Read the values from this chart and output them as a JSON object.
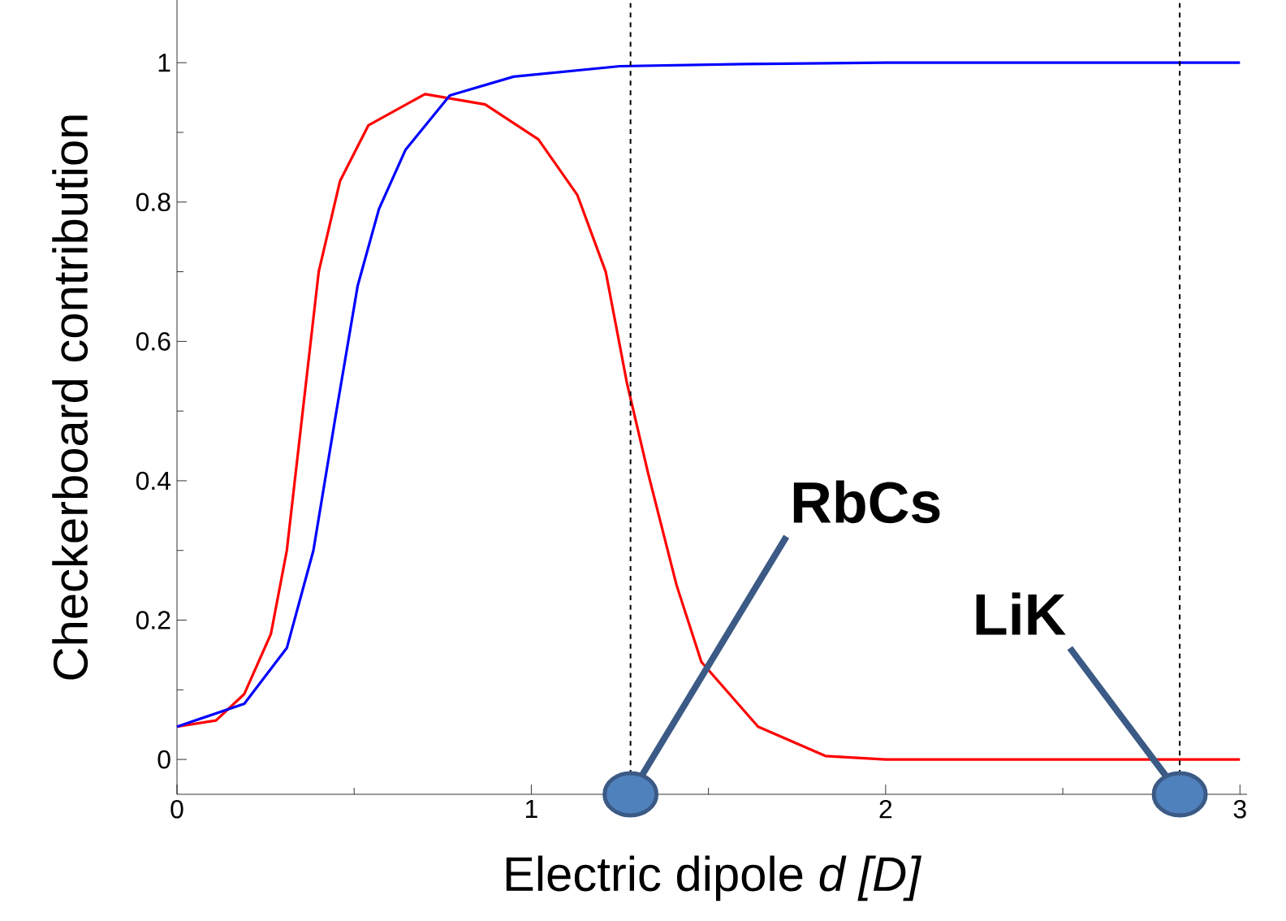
{
  "chart_data": {
    "type": "line",
    "xlabel": "Electric dipole *d [D]*",
    "ylabel": "Checkerboard contribution",
    "xlim": [
      0,
      3.02
    ],
    "ylim": [
      -0.05,
      1.09
    ],
    "xticks": [
      0,
      1,
      2,
      3
    ],
    "yticks": [
      0,
      0.2,
      0.4,
      0.6,
      0.8,
      1
    ],
    "series": [
      {
        "color": "#ff0000",
        "x": [
          0,
          0.11,
          0.19,
          0.265,
          0.31,
          0.355,
          0.4,
          0.46,
          0.54,
          0.7,
          0.87,
          1.02,
          1.13,
          1.21,
          1.27,
          1.33,
          1.41,
          1.48,
          1.64,
          1.83,
          2.0,
          3.0
        ],
        "values": [
          0.047,
          0.056,
          0.094,
          0.18,
          0.3,
          0.5,
          0.7,
          0.83,
          0.91,
          0.955,
          0.94,
          0.89,
          0.81,
          0.7,
          0.54,
          0.41,
          0.25,
          0.14,
          0.047,
          0.005,
          0,
          0
        ]
      },
      {
        "color": "#0000ff",
        "x": [
          0,
          0.19,
          0.31,
          0.385,
          0.45,
          0.51,
          0.57,
          0.645,
          0.77,
          0.95,
          1.25,
          1.6,
          2.0,
          3.0
        ],
        "values": [
          0.047,
          0.08,
          0.16,
          0.3,
          0.5,
          0.68,
          0.79,
          0.875,
          0.953,
          0.98,
          0.995,
          0.998,
          1,
          1
        ]
      }
    ],
    "ref_lines": [
      {
        "axis": "x",
        "value": 1.28,
        "color": "#000000",
        "line_style": "dashed"
      },
      {
        "axis": "x",
        "value": 2.83,
        "color": "#000000",
        "line_style": "dashed"
      }
    ],
    "annotations": [
      {
        "text": "RbCs",
        "x": 1.28,
        "y": -0.05
      },
      {
        "text": "LiK",
        "x": 2.83,
        "y": -0.05
      }
    ]
  }
}
